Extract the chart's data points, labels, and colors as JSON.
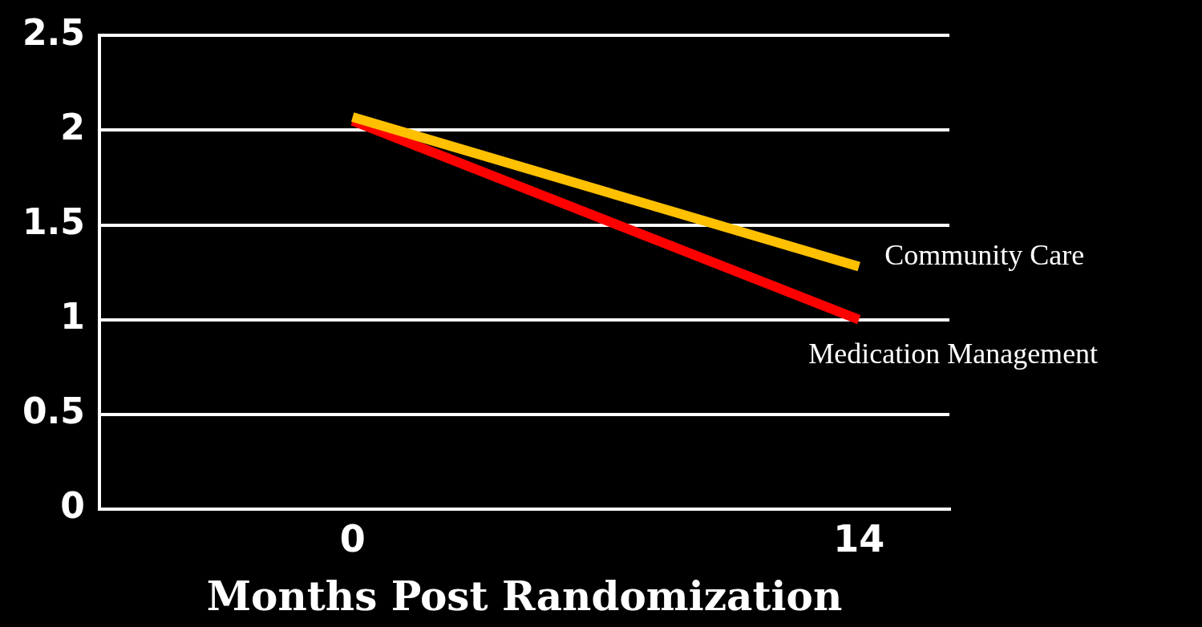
{
  "chart_data": {
    "type": "line",
    "xlabel": "Months Post Randomization",
    "xlim": [
      -7,
      16.5
    ],
    "xticks": [
      0,
      14
    ],
    "ylim": [
      0,
      2.5
    ],
    "yticks": [
      0,
      0.5,
      1,
      1.5,
      2,
      2.5
    ],
    "x": [
      0,
      14
    ],
    "grid": "y",
    "legend": false,
    "marker": "none",
    "line_style": "solid",
    "series": [
      {
        "name": "Community Care",
        "color": "#ffc000",
        "values": [
          2.07,
          1.28
        ]
      },
      {
        "name": "Medication Management",
        "color": "#ff0000",
        "values": [
          2.05,
          1.0
        ]
      }
    ]
  }
}
